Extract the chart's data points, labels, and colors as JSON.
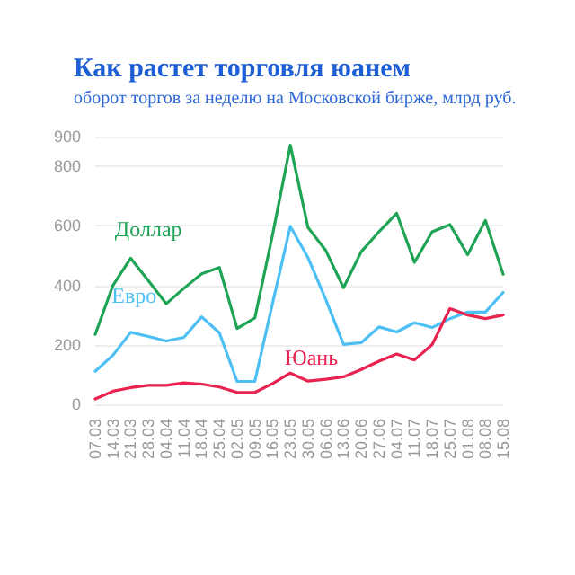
{
  "chart_data": {
    "type": "line",
    "title": "Как растет торговля юанем",
    "subtitle": "оборот торгов за неделю на Московской бирже, млрд руб.",
    "categories": [
      "07.03",
      "14.03",
      "21.03",
      "28.03",
      "04.04",
      "11.04",
      "18.04",
      "25.04",
      "02.05",
      "09.05",
      "16.05",
      "23.05",
      "30.05",
      "06.06",
      "13.06",
      "20.06",
      "27.06",
      "04.07",
      "11.07",
      "18.07",
      "25.07",
      "01.08",
      "08.08",
      "15.08"
    ],
    "series": [
      {
        "name": "Доллар",
        "color": "#1ea455",
        "values": [
          235,
          400,
          491,
          415,
          338,
          390,
          439,
          460,
          255,
          290,
          570,
          871,
          594,
          517,
          392,
          513,
          580,
          642,
          477,
          580,
          604,
          503,
          618,
          437
        ]
      },
      {
        "name": "Евро",
        "color": "#4cbff5",
        "values": [
          111,
          165,
          242,
          228,
          213,
          225,
          294,
          240,
          77,
          77,
          340,
          598,
          493,
          352,
          201,
          207,
          260,
          243,
          274,
          258,
          288,
          310,
          310,
          376
        ]
      },
      {
        "name": "Юань",
        "color": "#e8234f",
        "values": [
          18,
          44,
          56,
          64,
          64,
          72,
          68,
          58,
          40,
          40,
          70,
          105,
          78,
          84,
          92,
          117,
          145,
          169,
          149,
          201,
          322,
          300,
          288,
          300
        ]
      }
    ],
    "ylim": [
      0,
      900
    ],
    "yticks": [
      0,
      200,
      400,
      600,
      800,
      900
    ],
    "grid": "y",
    "legend": false,
    "marker": "none",
    "line_style": "solid"
  }
}
